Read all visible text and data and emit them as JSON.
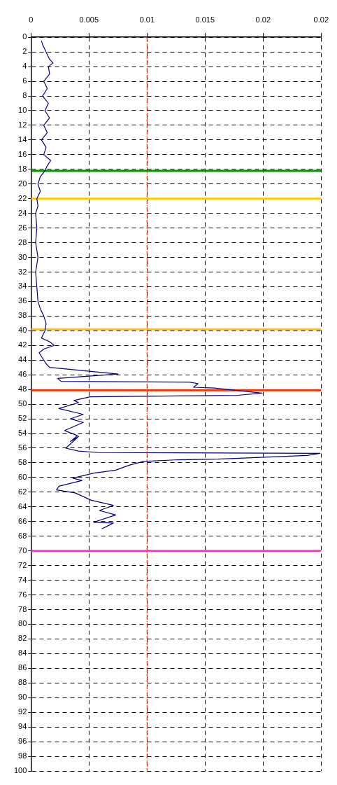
{
  "chart_data": {
    "type": "line",
    "x": [
      0.0009,
      0.001,
      0.0013,
      0.0016,
      0.0019,
      0.0015,
      0.0016,
      0.0011,
      0.0014,
      0.001,
      0.0015,
      0.0012,
      0.0016,
      0.0011,
      0.0014,
      0.0009,
      0.0013,
      0.0011,
      0.0017,
      0.0014,
      0.0012,
      0.0008,
      0.0006,
      0.0008,
      0.0005,
      0.0006,
      0.0004,
      0.0005,
      0.0004,
      0.0006,
      0.0004,
      0.0005,
      0.0006,
      0.0008,
      0.0011,
      0.0013,
      0.0012,
      0.0009,
      0.0016,
      0.002,
      0.0011,
      0.0007,
      0.0009,
      0.0011,
      0.0013,
      0.0016,
      0.0075,
      0.0023,
      0.0026,
      0.0136,
      0.0144,
      0.014,
      0.0158,
      0.0199,
      0.0178,
      0.0051,
      0.0037,
      0.0041,
      0.0024,
      0.0045,
      0.0034,
      0.0045,
      0.0029,
      0.004,
      0.0034,
      0.0041,
      0.003,
      0.0041,
      0.0058,
      0.0249,
      0.0238,
      0.0161,
      0.0124,
      0.0097,
      0.0085,
      0.0073,
      0.0054,
      0.0036,
      0.0044,
      0.0024,
      0.0022,
      0.0038,
      0.0052,
      0.0071,
      0.0059,
      0.0073,
      0.0054,
      0.0071,
      0.0061
    ],
    "series": [
      {
        "color": "#000080",
        "values": [
          0.5,
          1,
          2,
          3,
          3.5,
          4,
          5,
          6,
          7,
          8,
          9,
          10,
          11,
          12,
          13,
          14,
          15,
          16,
          16.8,
          17.5,
          18.2,
          19,
          20,
          21,
          22,
          23,
          24,
          26,
          28,
          30,
          32,
          34,
          36,
          37,
          38,
          39,
          40,
          41,
          41.5,
          42,
          42.5,
          43,
          43.5,
          44,
          44.5,
          45,
          45.9,
          46.5,
          46.9,
          47,
          47.2,
          47.7,
          47.8,
          48.5,
          48.8,
          49,
          49.5,
          49.8,
          50.6,
          51.4,
          52,
          52.5,
          53.6,
          54.3,
          55.1,
          54.4,
          56,
          56.4,
          56.6,
          56.7,
          57,
          57.5,
          57.6,
          57.8,
          58.3,
          59,
          59.4,
          60.1,
          60.4,
          61.2,
          61.7,
          62.1,
          63.1,
          63.8,
          64.5,
          65.1,
          66.1,
          66.2,
          67
        ]
      }
    ],
    "xlim": [
      0,
      0.025
    ],
    "xticks": [
      0,
      0.005,
      0.01,
      0.015,
      0.02,
      {
        "value": 0.025,
        "label": "0.02"
      }
    ],
    "ylim": [
      100,
      0
    ],
    "yticks": [
      0,
      2,
      4,
      6,
      8,
      10,
      12,
      14,
      16,
      18,
      20,
      22,
      24,
      26,
      28,
      30,
      32,
      34,
      36,
      38,
      40,
      42,
      44,
      46,
      48,
      50,
      52,
      54,
      56,
      58,
      60,
      62,
      64,
      66,
      68,
      70,
      72,
      74,
      76,
      78,
      80,
      82,
      84,
      86,
      88,
      90,
      92,
      94,
      96,
      98,
      100
    ],
    "grid": true,
    "legend": false,
    "marker": "none",
    "line_style": "solid",
    "ref_lines": [
      {
        "axis": "y",
        "value": 18.2,
        "color": "#009900"
      },
      {
        "axis": "y",
        "value": 22,
        "color": "#ffcc00"
      },
      {
        "axis": "y",
        "value": 39.8,
        "color": "#ffc800"
      },
      {
        "axis": "y",
        "value": 48.1,
        "color": "#ff3300"
      },
      {
        "axis": "y",
        "value": 70,
        "color": "#ff33cc"
      },
      {
        "axis": "x",
        "value": 0.01,
        "color": "#ff3300",
        "line_style": "dotted"
      }
    ]
  }
}
